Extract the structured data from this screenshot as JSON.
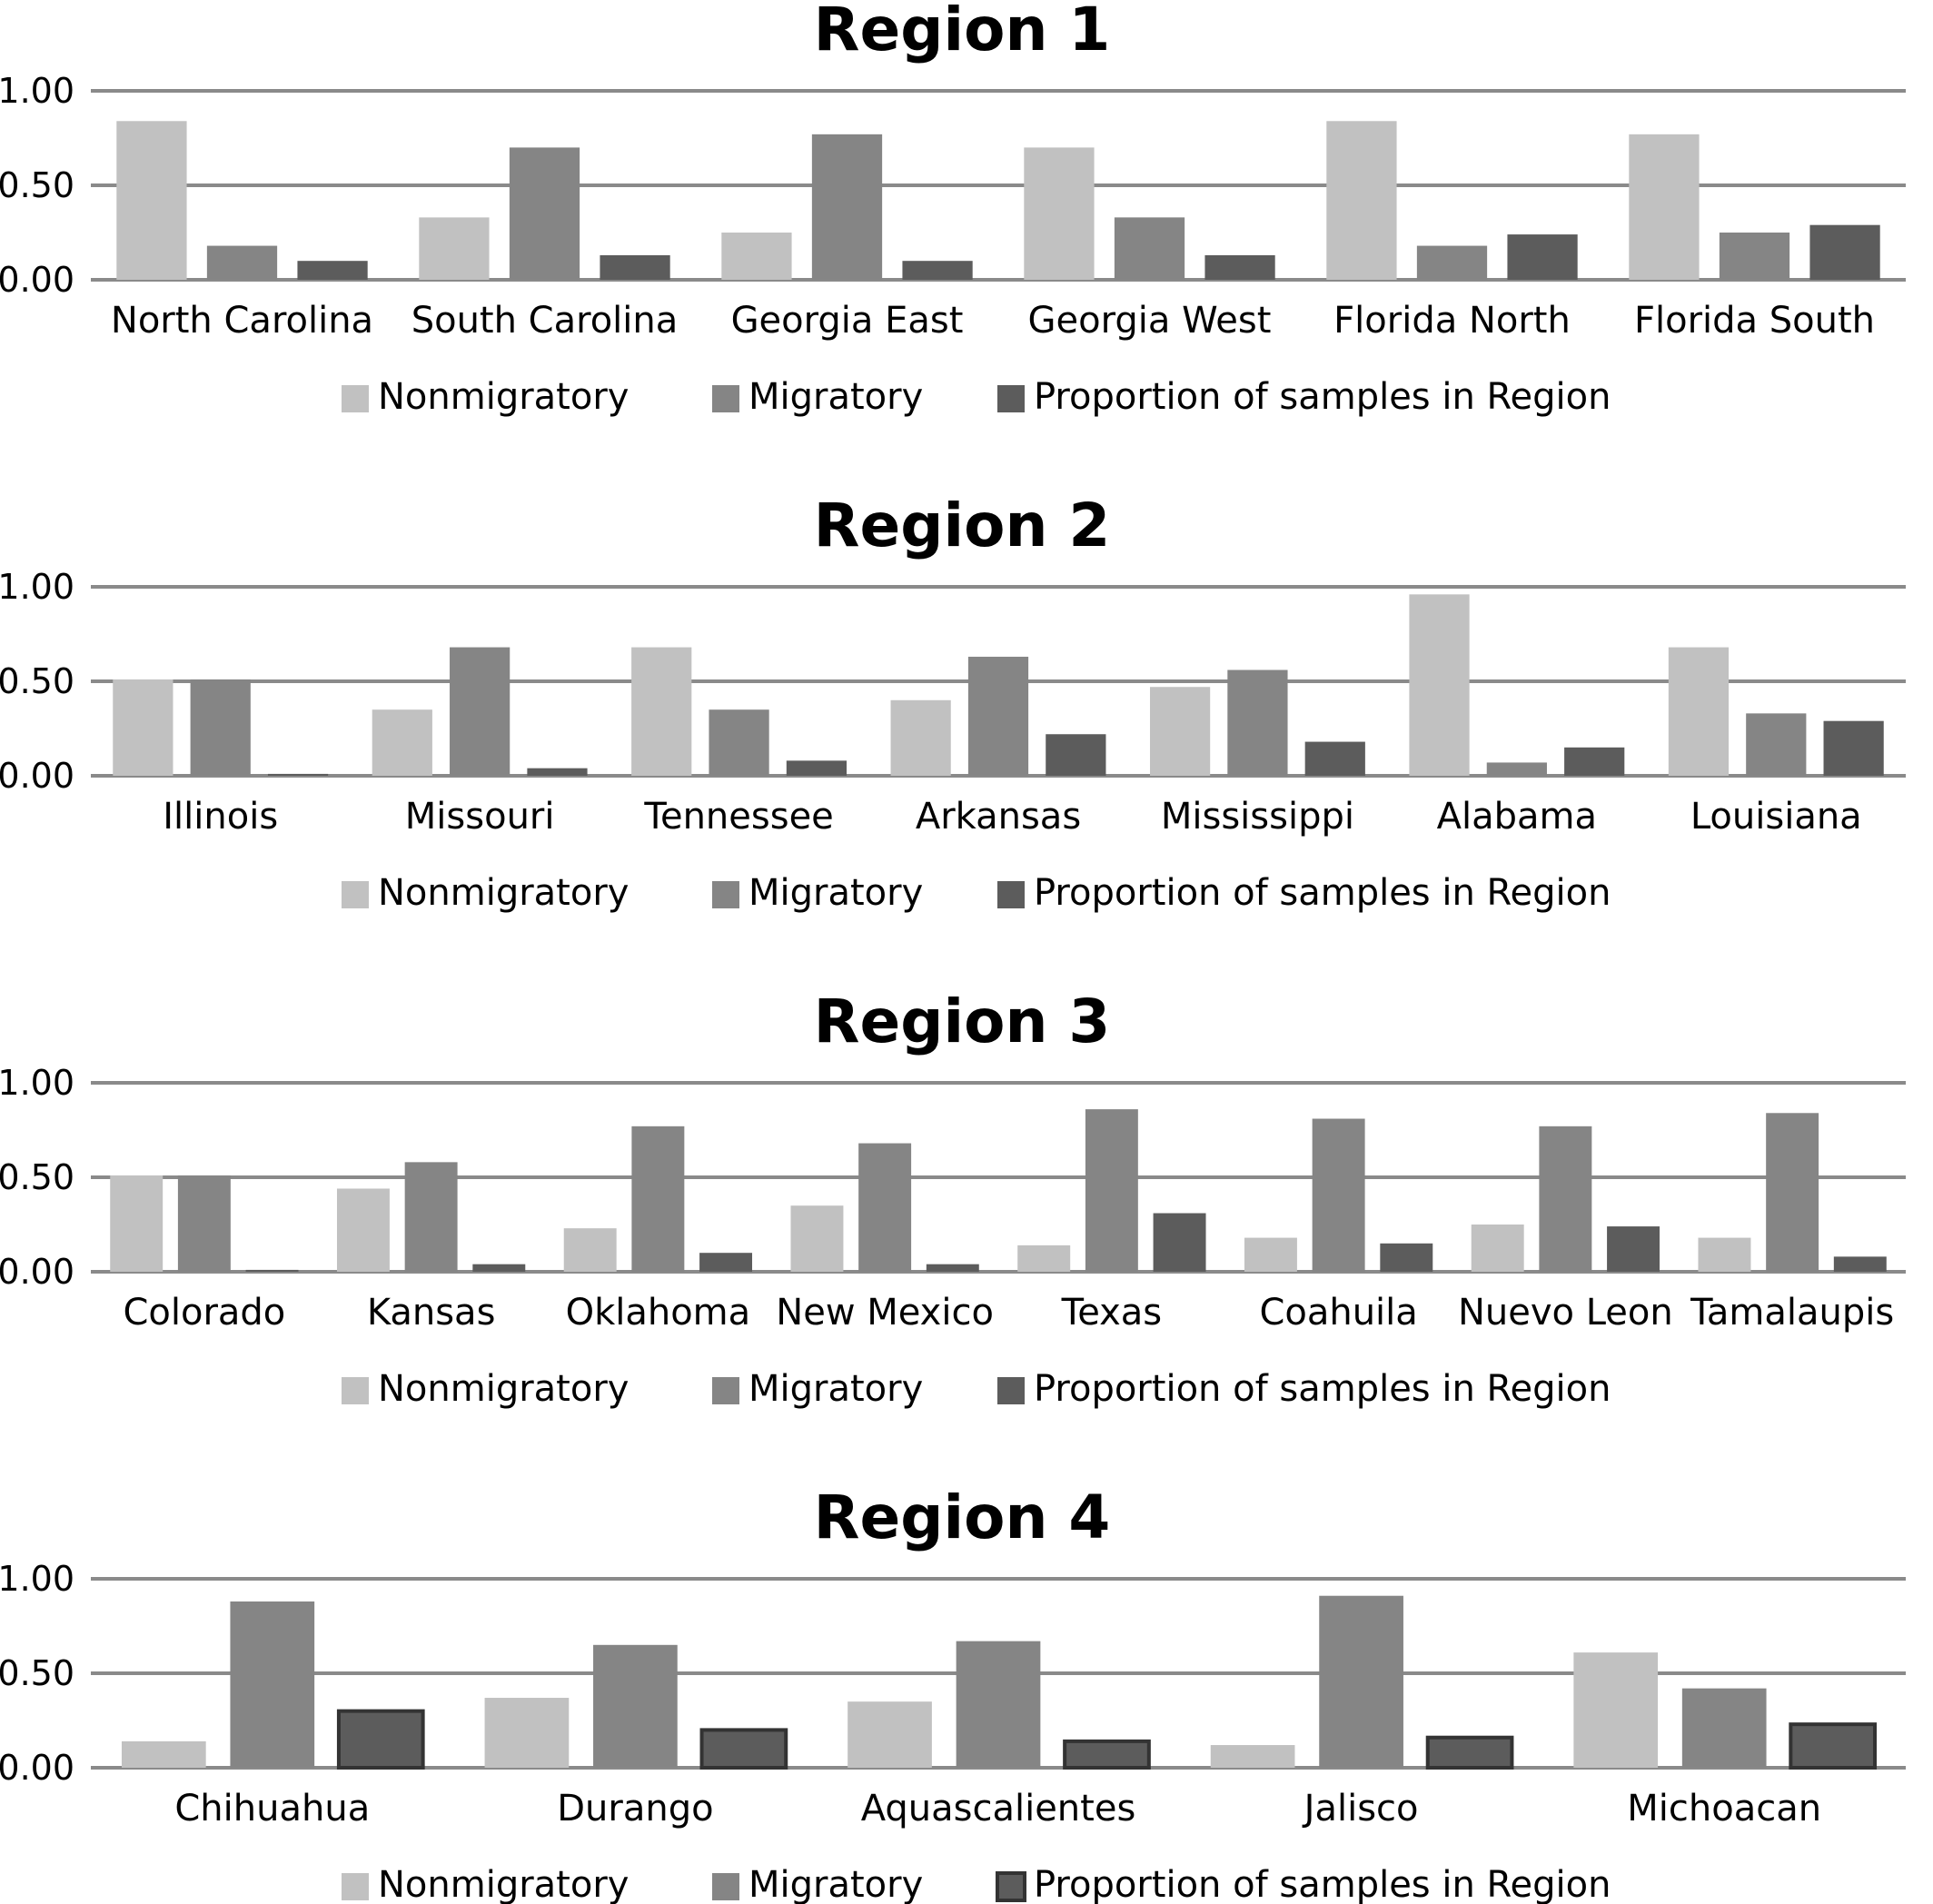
{
  "chart_data": [
    {
      "type": "bar",
      "title": "Region 1",
      "ylim": [
        0,
        1
      ],
      "yticks": [
        "1.00",
        "0.50",
        "0.00"
      ],
      "grid": true,
      "legend_position": "bottom",
      "categories": [
        "North Carolina",
        "South Carolina",
        "Georgia East",
        "Georgia West",
        "Florida North",
        "Florida South"
      ],
      "series": [
        {
          "name": "Nonmigratory",
          "color": "#c1c1c1",
          "values": [
            0.84,
            0.33,
            0.25,
            0.7,
            0.84,
            0.77
          ]
        },
        {
          "name": "Migratory",
          "color": "#858585",
          "values": [
            0.18,
            0.7,
            0.77,
            0.33,
            0.18,
            0.25
          ]
        },
        {
          "name": "Proportion of samples in Region",
          "color": "#5c5c5c",
          "values": [
            0.1,
            0.13,
            0.1,
            0.13,
            0.24,
            0.29
          ]
        }
      ]
    },
    {
      "type": "bar",
      "title": "Region 2",
      "ylim": [
        0,
        1
      ],
      "yticks": [
        "1.00",
        "0.50",
        "0.00"
      ],
      "grid": true,
      "legend_position": "bottom",
      "categories": [
        "Illinois",
        "Missouri",
        "Tennessee",
        "Arkansas",
        "Mississippi",
        "Alabama",
        "Louisiana"
      ],
      "series": [
        {
          "name": "Nonmigratory",
          "color": "#c1c1c1",
          "values": [
            0.51,
            0.35,
            0.68,
            0.4,
            0.47,
            0.96,
            0.68
          ]
        },
        {
          "name": "Migratory",
          "color": "#858585",
          "values": [
            0.51,
            0.68,
            0.35,
            0.63,
            0.56,
            0.07,
            0.33
          ]
        },
        {
          "name": "Proportion of samples in Region",
          "color": "#5c5c5c",
          "values": [
            0.01,
            0.04,
            0.08,
            0.22,
            0.18,
            0.15,
            0.29
          ]
        }
      ]
    },
    {
      "type": "bar",
      "title": "Region 3",
      "ylim": [
        0,
        1
      ],
      "yticks": [
        "1.00",
        "0.50",
        "0.00"
      ],
      "grid": true,
      "legend_position": "bottom",
      "categories": [
        "Colorado",
        "Kansas",
        "Oklahoma",
        "New Mexico",
        "Texas",
        "Coahuila",
        "Nuevo Leon",
        "Tamalaupis"
      ],
      "series": [
        {
          "name": "Nonmigratory",
          "color": "#c1c1c1",
          "values": [
            0.51,
            0.44,
            0.23,
            0.35,
            0.14,
            0.18,
            0.25,
            0.18
          ]
        },
        {
          "name": "Migratory",
          "color": "#858585",
          "values": [
            0.51,
            0.58,
            0.77,
            0.68,
            0.86,
            0.81,
            0.77,
            0.84
          ]
        },
        {
          "name": "Proportion of samples in Region",
          "color": "#5c5c5c",
          "values": [
            0.01,
            0.04,
            0.1,
            0.04,
            0.31,
            0.15,
            0.24,
            0.08
          ]
        }
      ]
    },
    {
      "type": "bar",
      "title": "Region 4",
      "ylim": [
        0,
        1
      ],
      "yticks": [
        "1.00",
        "0.50",
        "0.00"
      ],
      "grid": true,
      "legend_position": "bottom",
      "categories": [
        "Chihuahua",
        "Durango",
        "Aquascalientes",
        "Jalisco",
        "Michoacan"
      ],
      "series": [
        {
          "name": "Nonmigratory",
          "color": "#c1c1c1",
          "values": [
            0.14,
            0.37,
            0.35,
            0.12,
            0.61
          ]
        },
        {
          "name": "Migratory",
          "color": "#858585",
          "values": [
            0.88,
            0.65,
            0.67,
            0.91,
            0.42
          ]
        },
        {
          "name": "Proportion of samples in Region",
          "color": "#5c5c5c",
          "values": [
            0.3,
            0.2,
            0.14,
            0.16,
            0.23
          ],
          "outlined": true
        }
      ]
    }
  ]
}
